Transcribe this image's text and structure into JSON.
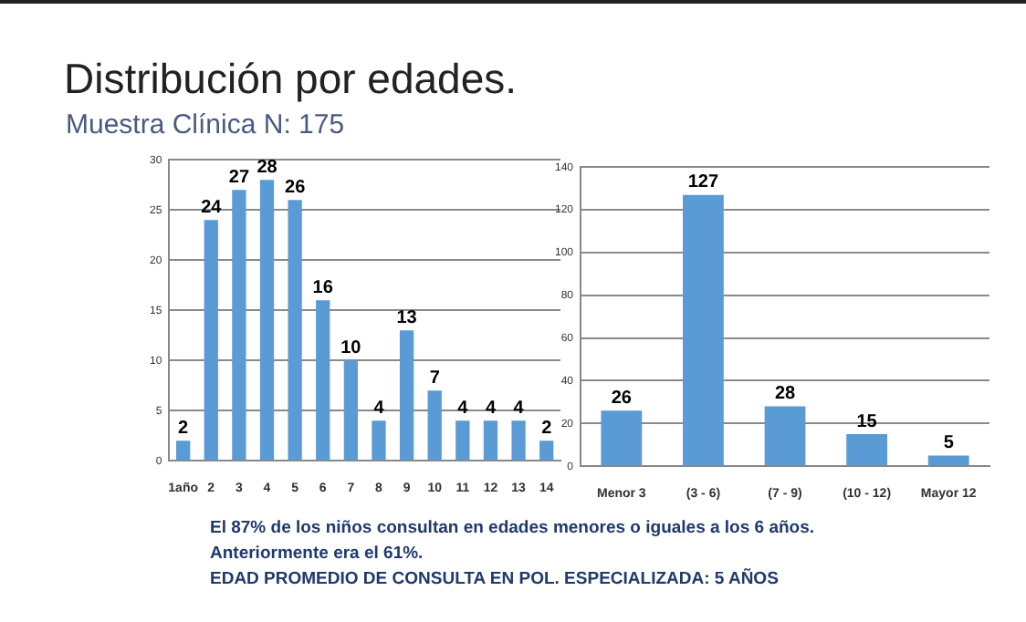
{
  "chart_data": [
    {
      "type": "bar",
      "title": "Distribución por edades.",
      "subtitle": "Muestra Clínica N: 175",
      "categories": [
        "1año",
        "2",
        "3",
        "4",
        "5",
        "6",
        "7",
        "8",
        "9",
        "10",
        "11",
        "12",
        "13",
        "14"
      ],
      "series": [
        {
          "color": "#5b9bd5",
          "values": [
            2,
            24,
            27,
            28,
            26,
            16,
            10,
            4,
            13,
            7,
            4,
            4,
            4,
            2
          ]
        }
      ],
      "ylim": [
        0,
        30
      ],
      "yticks": [
        0,
        5,
        10,
        15,
        20,
        25,
        30
      ],
      "grid": "y",
      "legend": false,
      "data_labels": true,
      "annotations": [
        "El 87% de los niños consultan en edades menores o iguales  a los 6 años.",
        "Anteriormente era el 61%.",
        "EDAD PROMEDIO DE CONSULTA EN POL. ESPECIALIZADA: 5 AÑOS"
      ]
    },
    {
      "type": "bar",
      "categories": [
        "Menor 3",
        "(3 - 6)",
        "(7 - 9)",
        "(10 - 12)",
        "Mayor 12"
      ],
      "series": [
        {
          "color": "#5b9bd5",
          "values": [
            26,
            127,
            28,
            15,
            5
          ]
        }
      ],
      "ylim": [
        0,
        140
      ],
      "yticks": [
        0,
        20,
        40,
        60,
        80,
        100,
        120,
        140
      ],
      "grid": "y",
      "legend": false,
      "data_labels": true
    }
  ]
}
